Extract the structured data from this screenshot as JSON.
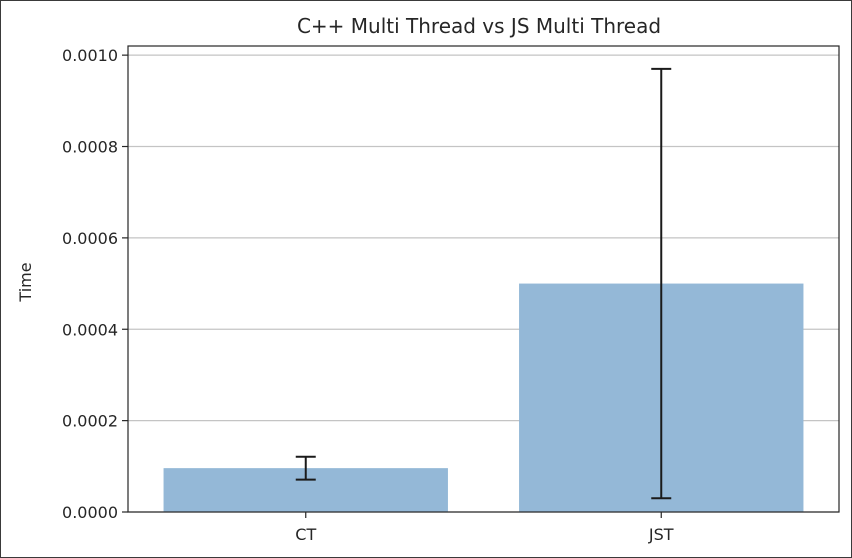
{
  "chart_data": {
    "type": "bar",
    "title": "C++ Multi Thread vs JS Multi Thread",
    "xlabel": "",
    "ylabel": "Time",
    "categories": [
      "CT",
      "JST"
    ],
    "values": [
      9.6e-05,
      0.0005
    ],
    "error": [
      2.5e-05,
      0.00047
    ],
    "ylim": [
      0,
      0.00102
    ],
    "yticks": [
      0,
      0.0002,
      0.0004,
      0.0006,
      0.0008,
      0.001
    ],
    "ytick_labels": [
      "0.0000",
      "0.0002",
      "0.0004",
      "0.0006",
      "0.0008",
      "0.0010"
    ],
    "grid": "y",
    "bar_color": "#94b8d7",
    "bar_opacity": 1,
    "error_color": "#1a1a1a"
  }
}
